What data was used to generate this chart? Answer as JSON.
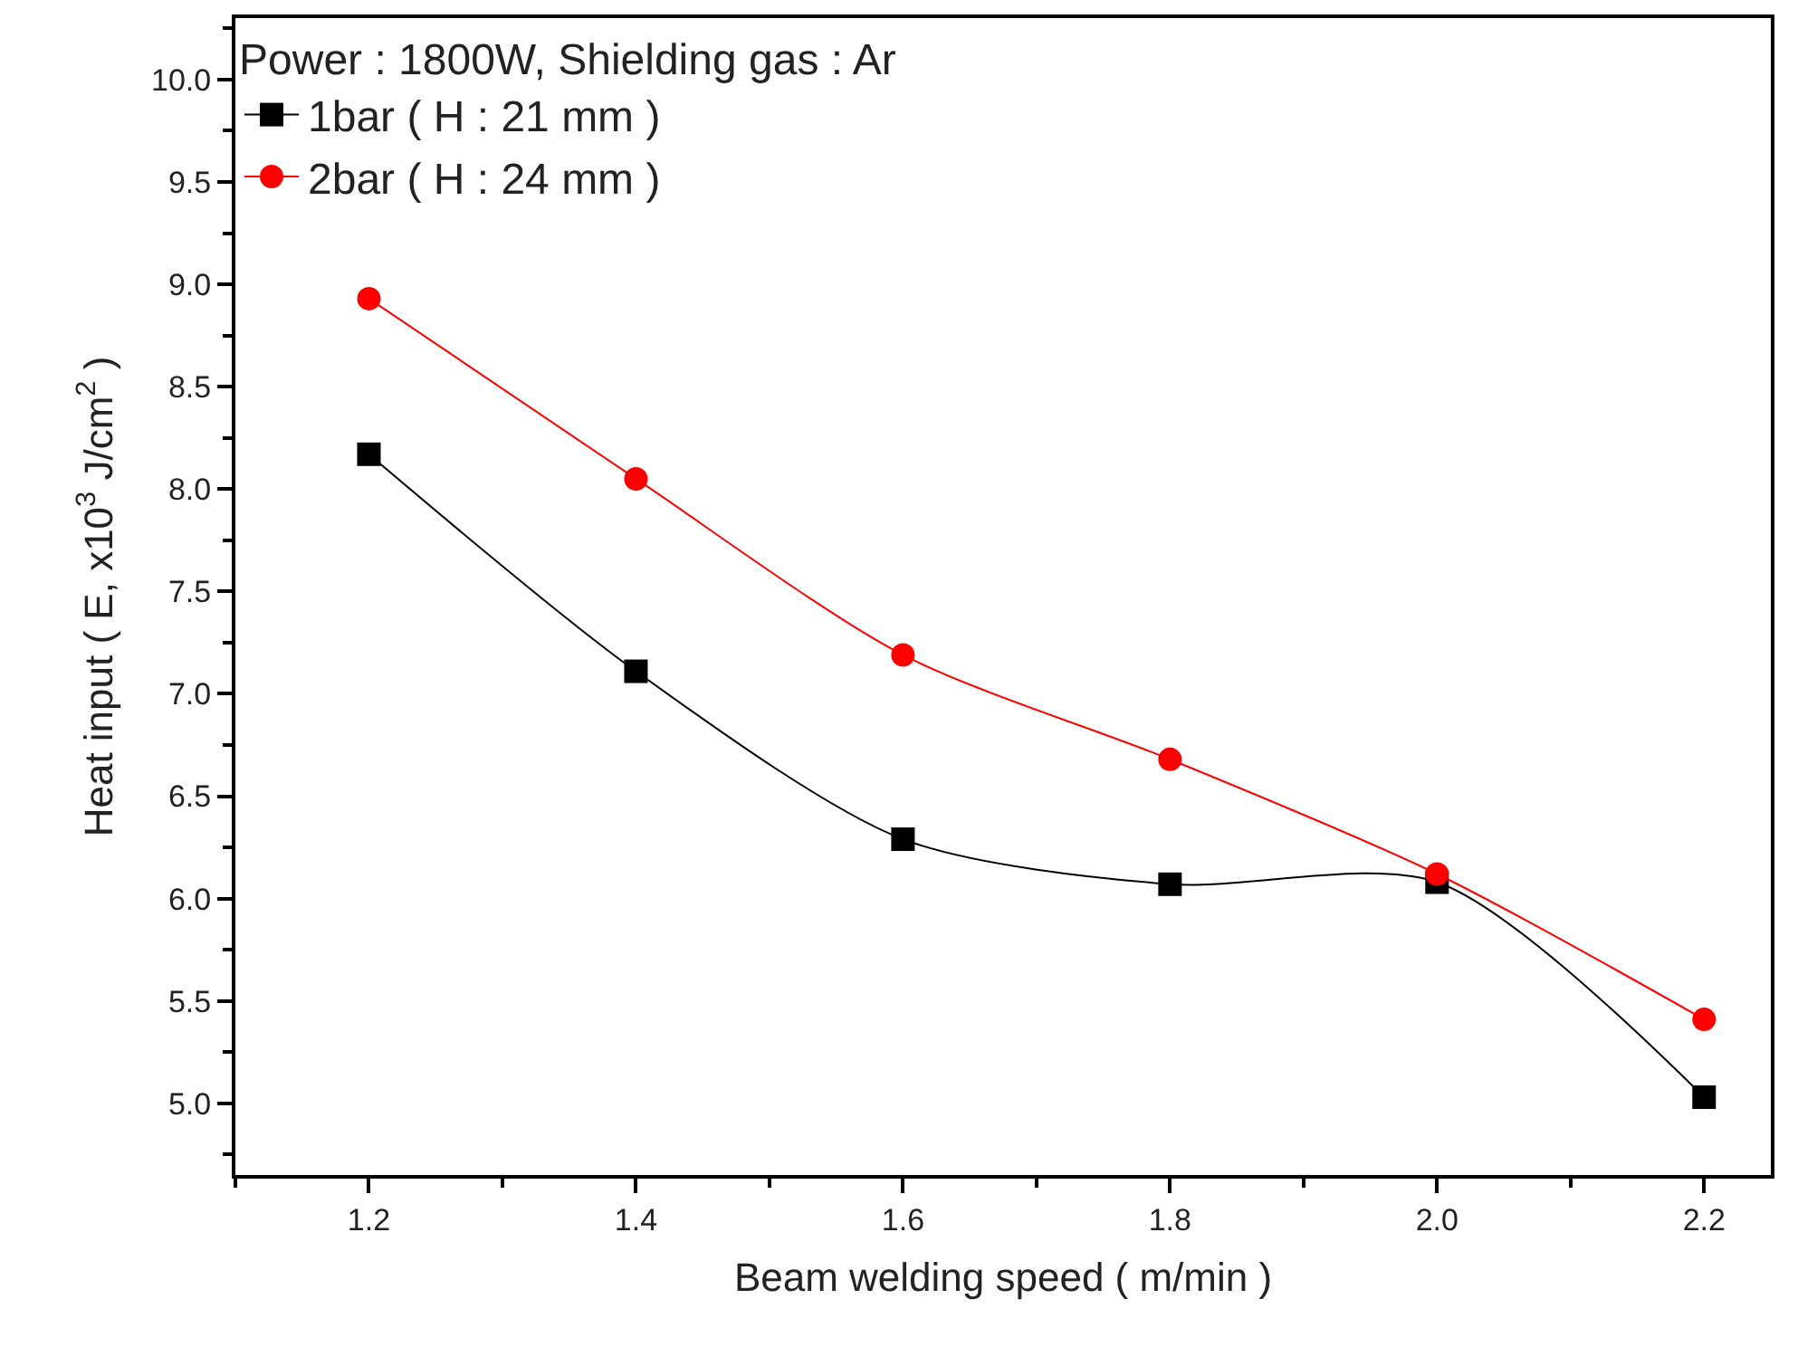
{
  "chart_data": {
    "type": "line",
    "xlabel": "Beam welding speed ( m/min )",
    "ylabel": "Heat input ( E, x10$^{3}$ J/cm$^{2}$ )",
    "legend_title": "Power : 1800W, Shielding gas : Ar",
    "x": [
      1.2,
      1.4,
      1.6,
      1.8,
      2.0,
      2.2
    ],
    "series": [
      {
        "name": "1bar ( H : 21 mm )",
        "color": "#000000",
        "marker": "square",
        "values": [
          8.17,
          7.11,
          6.29,
          6.07,
          6.08,
          5.03
        ]
      },
      {
        "name": "2bar ( H : 24 mm )",
        "color": "#ff0000",
        "marker": "circle",
        "values": [
          8.93,
          8.05,
          7.19,
          6.68,
          6.12,
          5.41
        ]
      }
    ],
    "xlim": [
      1.1,
      2.25
    ],
    "xticks": [
      1.2,
      1.4,
      1.6,
      1.8,
      {
        "value": 2,
        "label": "2.0"
      },
      2.2
    ],
    "ylim": [
      4.65,
      10.3
    ],
    "yticks": [
      {
        "value": 5,
        "label": "5.0"
      },
      5.5,
      {
        "value": 6,
        "label": "6.0"
      },
      6.5,
      {
        "value": 7,
        "label": "7.0"
      },
      7.5,
      {
        "value": 8,
        "label": "8.0"
      },
      8.5,
      {
        "value": 9,
        "label": "9.0"
      },
      9.5,
      {
        "value": 10,
        "label": "10.0"
      }
    ],
    "legend": "top left",
    "line_style": "solid"
  }
}
